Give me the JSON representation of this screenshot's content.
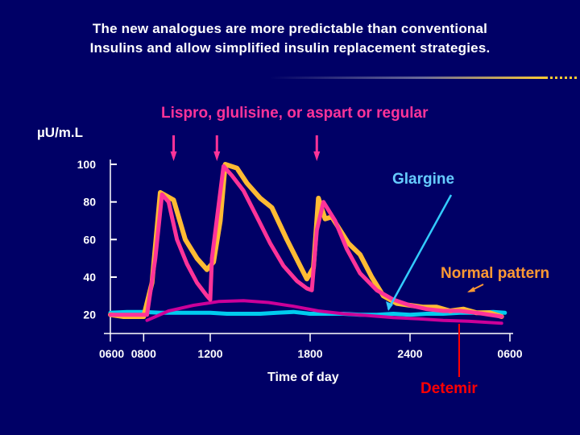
{
  "title_line1": "The new  analogues are more   predictable than conventional",
  "title_line2": "Insulins  and  allow  simplified   insulin replacement strategies.",
  "chart_data": {
    "type": "line",
    "subtitle": "Lispro, glulisine, or aspart or regular",
    "ylabel": "µU/m.L",
    "xlabel": "Time of day",
    "yticks": [
      "100",
      "80",
      "60",
      "40",
      "20"
    ],
    "ytick_values": [
      100,
      80,
      60,
      40,
      20
    ],
    "ylim": [
      10,
      100
    ],
    "xticks": [
      "0600",
      "0800",
      "1200",
      "1800",
      "2400",
      "0600"
    ],
    "xtick_hours": [
      6,
      8,
      12,
      18,
      24,
      30
    ],
    "xlim": [
      6,
      30
    ],
    "meal_arrow_hours": [
      9.8,
      12.4,
      18.4
    ],
    "series": [
      {
        "name": "Normal pattern",
        "color": "#ffbb33",
        "x": [
          6,
          6.8,
          8,
          8.5,
          9.0,
          9.8,
          10.5,
          11.2,
          11.8,
          12.2,
          12.6,
          12.9,
          13.6,
          14.2,
          15.0,
          15.7,
          16.6,
          17.4,
          17.8,
          18.2,
          18.5,
          18.9,
          19.3,
          19.8,
          20.3,
          21.0,
          21.7,
          22.4,
          23.2,
          24.0,
          24.8,
          25.6,
          26.4,
          27.2,
          28.0,
          28.8,
          29.5
        ],
        "y": [
          20,
          19,
          19,
          37,
          85,
          81,
          60,
          50,
          44,
          48,
          70,
          100,
          98,
          90,
          82,
          77,
          60,
          46,
          39,
          45,
          82,
          71,
          72,
          65,
          58,
          52,
          40,
          30,
          26,
          25,
          24,
          24,
          22,
          23,
          21,
          21,
          19
        ]
      },
      {
        "name": "Lispro, glulisine, or aspart or regular",
        "color": "#ff3399",
        "x": [
          6,
          8.2,
          8.7,
          9.1,
          9.5,
          10.0,
          10.6,
          11.2,
          11.8,
          12.0,
          12.1,
          12.8,
          13.3,
          14.0,
          14.8,
          15.6,
          16.4,
          17.2,
          17.8,
          18.1,
          18.4,
          18.8,
          19.5,
          20.2,
          21.0,
          22.0,
          23.0,
          24.0,
          25.0,
          26.0,
          27.0,
          28.0,
          29.5
        ],
        "y": [
          20,
          20,
          50,
          84,
          80,
          60,
          47,
          37,
          30,
          28,
          50,
          99,
          94,
          86,
          72,
          58,
          46,
          38,
          34,
          33,
          65,
          80,
          70,
          55,
          42,
          33,
          28,
          25,
          23,
          22,
          22,
          21,
          19
        ]
      },
      {
        "name": "Glargine",
        "color": "#00ccee",
        "x": [
          6,
          7,
          8,
          9,
          10,
          11,
          12,
          13,
          14,
          15,
          16,
          17,
          18,
          19,
          20,
          21,
          22,
          23,
          24,
          25,
          26,
          27,
          28,
          29,
          29.7
        ],
        "y": [
          21,
          21.5,
          21.5,
          21,
          21,
          21,
          21,
          20.5,
          20.5,
          20.5,
          21,
          21.5,
          20.5,
          20.5,
          20.5,
          20,
          20,
          20.5,
          20,
          20.5,
          20.5,
          21,
          21,
          21.5,
          21
        ]
      },
      {
        "name": "Detemir",
        "color": "#cc0099",
        "x": [
          8.2,
          9.5,
          11,
          12.5,
          14,
          15.5,
          17,
          18.5,
          20,
          21.5,
          23,
          24.5,
          26,
          27.5,
          29.5
        ],
        "y": [
          17,
          22,
          25,
          27,
          27.5,
          26.5,
          24.5,
          22,
          20.5,
          19.5,
          18.5,
          17.8,
          17,
          16.5,
          15.5
        ]
      }
    ],
    "annotations": {
      "glargine": "Glargine",
      "normal": "Normal pattern",
      "detemir": "Detemir"
    }
  },
  "colors": {
    "background": "#000066",
    "axis": "#ffffff",
    "meal_arrow": "#ff3399",
    "title_line_gradient_end": "#ffcc33"
  }
}
